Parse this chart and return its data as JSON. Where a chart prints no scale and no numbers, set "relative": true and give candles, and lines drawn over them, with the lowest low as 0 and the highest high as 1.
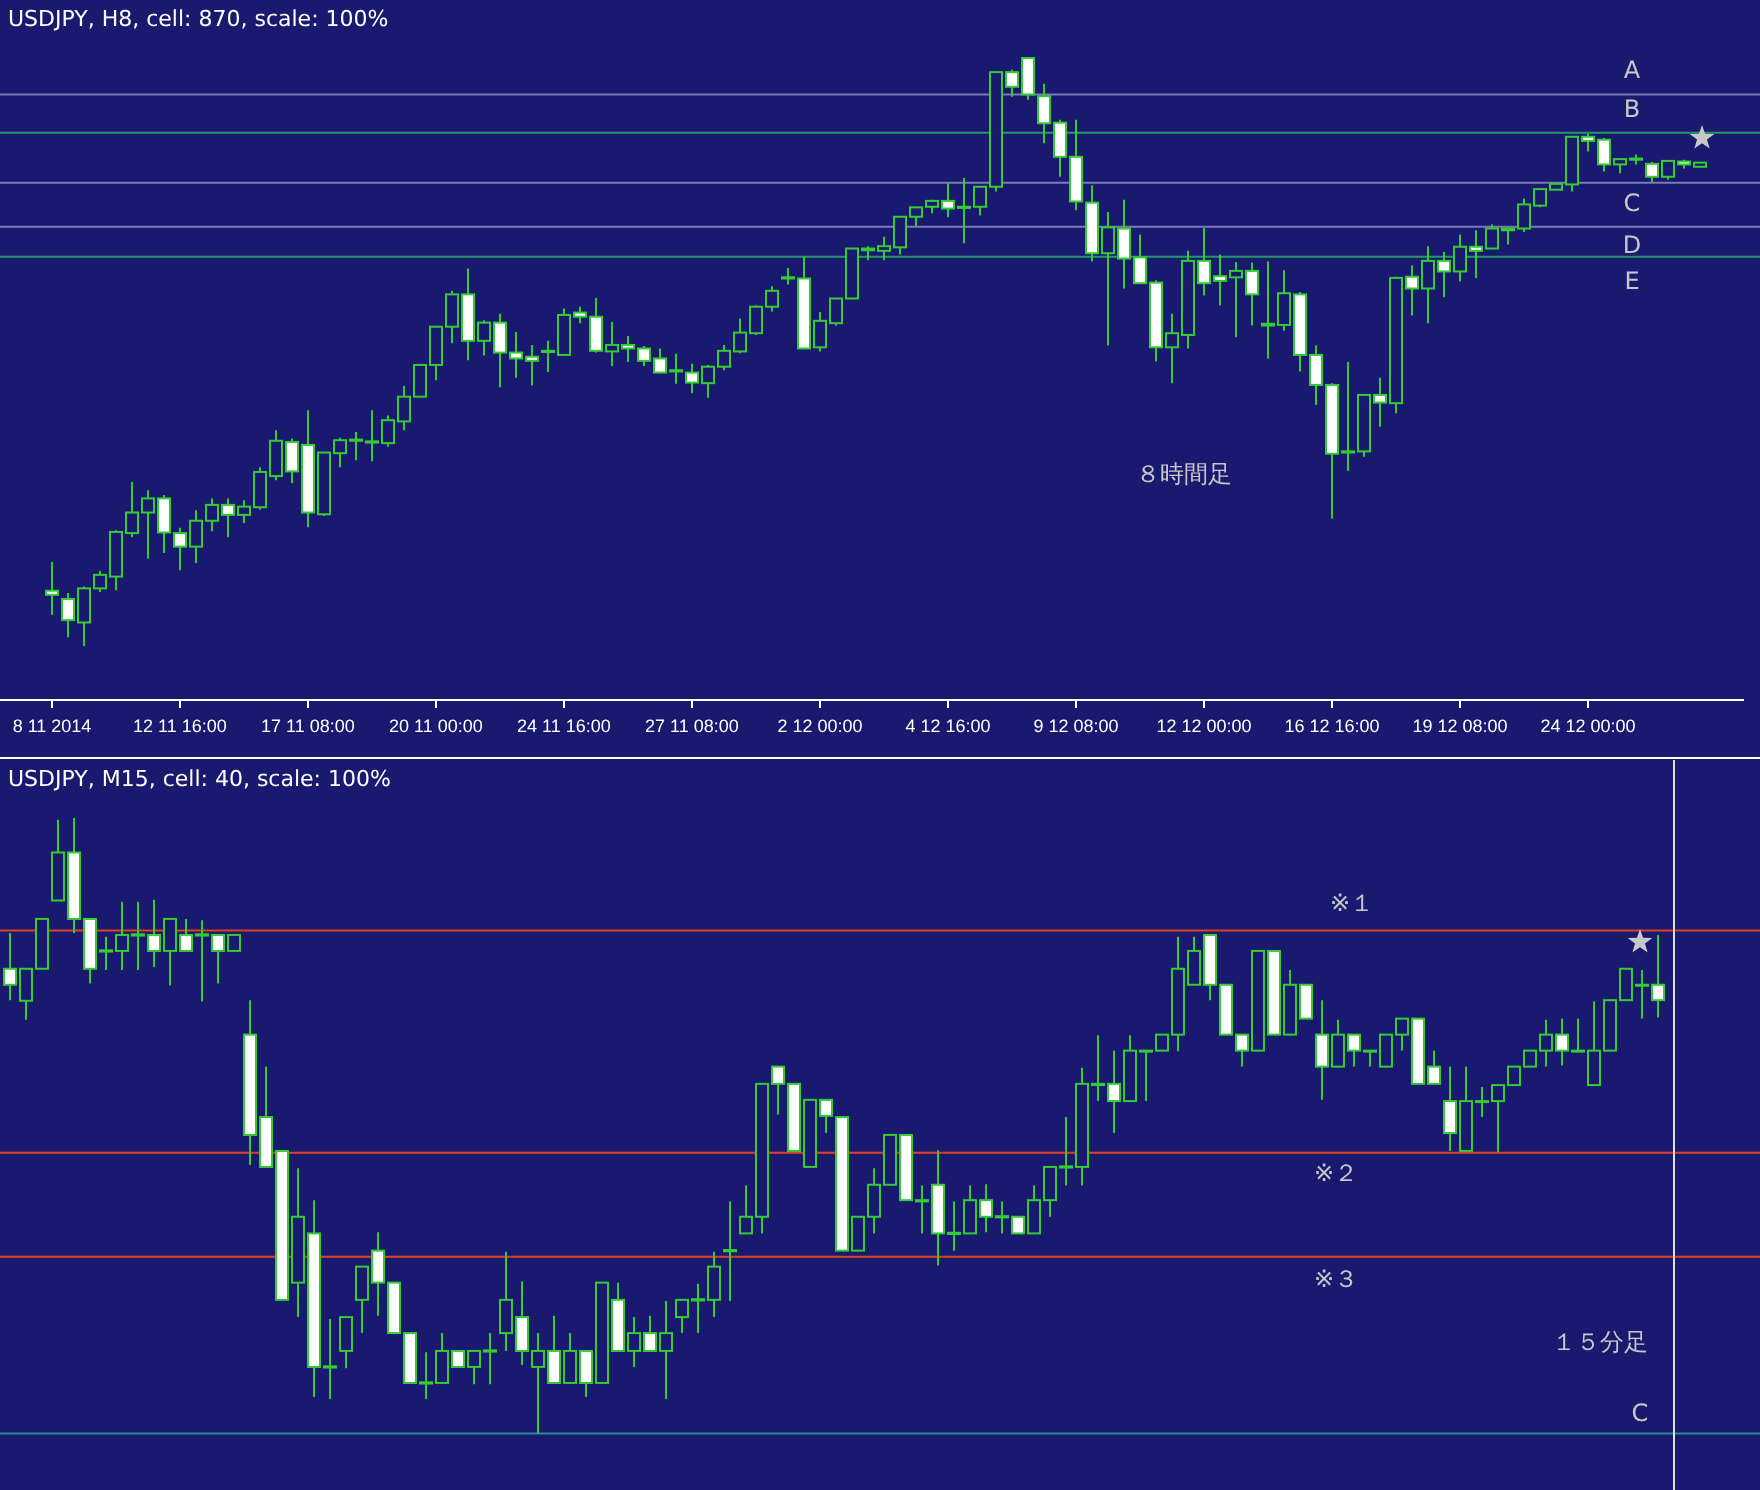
{
  "chart_data": [
    {
      "type": "candlestick",
      "title": "USDJPY, H8, cell: 870, scale: 100%",
      "relative": true,
      "color": "#32cd32",
      "categories": [
        "8 11 2014",
        null,
        null,
        null,
        null,
        null,
        null,
        null,
        "12 11 16:00",
        null,
        null,
        null,
        null,
        null,
        null,
        null,
        "17 11 08:00",
        null,
        null,
        null,
        null,
        null,
        null,
        null,
        "20 11 00:00",
        null,
        null,
        null,
        null,
        null,
        null,
        null,
        "24 11 16:00",
        null,
        null,
        null,
        null,
        null,
        null,
        null,
        "27 11 08:00",
        null,
        null,
        null,
        null,
        null,
        null,
        null,
        "2 12 00:00",
        null,
        null,
        null,
        null,
        null,
        null,
        null,
        "4 12 16:00",
        null,
        null,
        null,
        null,
        null,
        null,
        null,
        "9 12 08:00",
        null,
        null,
        null,
        null,
        null,
        null,
        null,
        "12 12 00:00",
        null,
        null,
        null,
        null,
        null,
        null,
        null,
        "16 12 16:00",
        null,
        null,
        null,
        null,
        null,
        null,
        null,
        "19 12 08:00",
        null,
        null,
        null,
        null,
        null,
        null,
        null,
        "24 12 00:00",
        null,
        null,
        null,
        null,
        null,
        null,
        null
      ],
      "ohlc": [
        [
          0.094,
          0.143,
          0.053,
          0.087
        ],
        [
          0.08,
          0.09,
          0.015,
          0.044
        ],
        [
          0.04,
          0.101,
          0.0,
          0.098
        ],
        [
          0.098,
          0.128,
          0.092,
          0.121
        ],
        [
          0.118,
          0.197,
          0.095,
          0.194
        ],
        [
          0.192,
          0.279,
          0.185,
          0.227
        ],
        [
          0.227,
          0.265,
          0.149,
          0.251
        ],
        [
          0.251,
          0.257,
          0.158,
          0.193
        ],
        [
          0.192,
          0.201,
          0.129,
          0.169
        ],
        [
          0.169,
          0.231,
          0.141,
          0.213
        ],
        [
          0.213,
          0.251,
          0.195,
          0.24
        ],
        [
          0.24,
          0.251,
          0.185,
          0.223
        ],
        [
          0.223,
          0.248,
          0.209,
          0.237
        ],
        [
          0.236,
          0.304,
          0.232,
          0.296
        ],
        [
          0.289,
          0.367,
          0.282,
          0.349
        ],
        [
          0.347,
          0.353,
          0.277,
          0.297
        ],
        [
          0.342,
          0.401,
          0.202,
          0.227
        ],
        [
          0.224,
          0.329,
          0.221,
          0.329
        ],
        [
          0.328,
          0.354,
          0.304,
          0.35
        ],
        [
          0.349,
          0.364,
          0.316,
          0.351
        ],
        [
          0.346,
          0.401,
          0.314,
          0.348
        ],
        [
          0.345,
          0.392,
          0.339,
          0.384
        ],
        [
          0.382,
          0.442,
          0.367,
          0.424
        ],
        [
          0.424,
          0.478,
          0.424,
          0.478
        ],
        [
          0.478,
          0.543,
          0.452,
          0.543
        ],
        [
          0.543,
          0.604,
          0.515,
          0.598
        ],
        [
          0.598,
          0.642,
          0.486,
          0.519
        ],
        [
          0.519,
          0.554,
          0.494,
          0.55
        ],
        [
          0.55,
          0.565,
          0.44,
          0.499
        ],
        [
          0.499,
          0.534,
          0.456,
          0.489
        ],
        [
          0.492,
          0.512,
          0.443,
          0.485
        ],
        [
          0.5,
          0.519,
          0.466,
          0.502
        ],
        [
          0.495,
          0.574,
          0.495,
          0.563
        ],
        [
          0.567,
          0.577,
          0.549,
          0.56
        ],
        [
          0.56,
          0.592,
          0.499,
          0.502
        ],
        [
          0.501,
          0.551,
          0.476,
          0.512
        ],
        [
          0.512,
          0.527,
          0.483,
          0.506
        ],
        [
          0.506,
          0.51,
          0.476,
          0.485
        ],
        [
          0.489,
          0.506,
          0.464,
          0.465
        ],
        [
          0.467,
          0.497,
          0.446,
          0.469
        ],
        [
          0.465,
          0.48,
          0.43,
          0.448
        ],
        [
          0.447,
          0.478,
          0.422,
          0.475
        ],
        [
          0.475,
          0.512,
          0.469,
          0.502
        ],
        [
          0.501,
          0.557,
          0.498,
          0.533
        ],
        [
          0.532,
          0.579,
          0.529,
          0.577
        ],
        [
          0.577,
          0.612,
          0.569,
          0.604
        ],
        [
          0.625,
          0.643,
          0.615,
          0.627
        ],
        [
          0.625,
          0.662,
          0.506,
          0.506
        ],
        [
          0.508,
          0.568,
          0.501,
          0.553
        ],
        [
          0.549,
          0.591,
          0.545,
          0.591
        ],
        [
          0.591,
          0.676,
          0.591,
          0.676
        ],
        [
          0.673,
          0.68,
          0.656,
          0.676
        ],
        [
          0.672,
          0.696,
          0.656,
          0.68
        ],
        [
          0.678,
          0.73,
          0.666,
          0.73
        ],
        [
          0.73,
          0.746,
          0.713,
          0.746
        ],
        [
          0.747,
          0.759,
          0.736,
          0.757
        ],
        [
          0.757,
          0.787,
          0.729,
          0.744
        ],
        [
          0.745,
          0.796,
          0.685,
          0.747
        ],
        [
          0.747,
          0.781,
          0.732,
          0.781
        ],
        [
          0.781,
          0.976,
          0.773,
          0.976
        ],
        [
          0.976,
          0.98,
          0.934,
          0.951
        ],
        [
          1.0,
          1.0,
          0.929,
          0.938
        ],
        [
          0.935,
          0.956,
          0.855,
          0.889
        ],
        [
          0.89,
          0.895,
          0.798,
          0.832
        ],
        [
          0.832,
          0.895,
          0.741,
          0.756
        ],
        [
          0.754,
          0.783,
          0.654,
          0.668
        ],
        [
          0.668,
          0.738,
          0.511,
          0.712
        ],
        [
          0.71,
          0.759,
          0.608,
          0.659
        ],
        [
          0.661,
          0.7,
          0.617,
          0.617
        ],
        [
          0.618,
          0.622,
          0.484,
          0.508
        ],
        [
          0.508,
          0.565,
          0.447,
          0.532
        ],
        [
          0.529,
          0.672,
          0.506,
          0.655
        ],
        [
          0.655,
          0.711,
          0.596,
          0.617
        ],
        [
          0.629,
          0.666,
          0.579,
          0.621
        ],
        [
          0.627,
          0.653,
          0.525,
          0.638
        ],
        [
          0.638,
          0.652,
          0.545,
          0.598
        ],
        [
          0.545,
          0.654,
          0.489,
          0.548
        ],
        [
          0.546,
          0.639,
          0.536,
          0.6
        ],
        [
          0.598,
          0.602,
          0.467,
          0.495
        ],
        [
          0.495,
          0.511,
          0.41,
          0.444
        ],
        [
          0.444,
          0.447,
          0.217,
          0.327
        ],
        [
          0.329,
          0.483,
          0.298,
          0.331
        ],
        [
          0.331,
          0.427,
          0.322,
          0.427
        ],
        [
          0.427,
          0.456,
          0.373,
          0.414
        ],
        [
          0.413,
          0.628,
          0.396,
          0.626
        ],
        [
          0.628,
          0.647,
          0.562,
          0.608
        ],
        [
          0.608,
          0.68,
          0.549,
          0.655
        ],
        [
          0.655,
          0.67,
          0.593,
          0.637
        ],
        [
          0.637,
          0.7,
          0.62,
          0.679
        ],
        [
          0.679,
          0.707,
          0.626,
          0.672
        ],
        [
          0.676,
          0.717,
          0.676,
          0.71
        ],
        [
          0.707,
          0.71,
          0.683,
          0.71
        ],
        [
          0.71,
          0.761,
          0.704,
          0.751
        ],
        [
          0.749,
          0.779,
          0.746,
          0.777
        ],
        [
          0.776,
          0.786,
          0.776,
          0.786
        ],
        [
          0.785,
          0.866,
          0.773,
          0.866
        ],
        [
          0.866,
          0.871,
          0.841,
          0.859
        ],
        [
          0.861,
          0.864,
          0.807,
          0.819
        ],
        [
          0.819,
          0.828,
          0.804,
          0.828
        ],
        [
          0.827,
          0.836,
          0.819,
          0.829
        ],
        [
          0.82,
          0.823,
          0.789,
          0.798
        ],
        [
          0.798,
          0.825,
          0.793,
          0.825
        ],
        [
          0.824,
          0.827,
          0.812,
          0.819
        ],
        [
          0.815,
          0.822,
          0.815,
          0.822
        ]
      ],
      "ref_lines": [
        {
          "axis": "y",
          "value": 0.938,
          "label": "A",
          "color": "#7a7ab8"
        },
        {
          "axis": "y",
          "value": 0.873,
          "label": "B",
          "color": "#229966"
        },
        {
          "axis": "y",
          "value": 0.788,
          "label": "C",
          "color": "#7a7ab8"
        },
        {
          "axis": "y",
          "value": 0.713,
          "label": "D",
          "color": "#7a7ab8"
        },
        {
          "axis": "y",
          "value": 0.662,
          "label": "E",
          "color": "#229966"
        }
      ],
      "annotations": [
        "８時間足"
      ]
    },
    {
      "type": "candlestick",
      "title": "USDJPY, M15, cell: 40, scale: 100%",
      "relative": true,
      "color": "#32cd32",
      "categories": [
        null,
        null,
        null,
        null,
        null,
        null,
        null,
        null,
        null,
        null,
        null,
        null,
        null,
        null,
        null,
        null,
        null,
        null,
        null,
        null,
        null,
        null,
        null,
        null,
        null,
        null,
        null,
        null,
        null,
        null,
        null,
        null,
        null,
        null,
        null,
        null,
        null,
        null,
        null,
        null,
        null,
        null,
        null,
        null,
        null,
        null,
        null,
        null,
        null,
        null,
        null,
        null,
        null,
        null,
        null,
        null,
        null,
        null,
        null,
        null,
        null,
        null,
        null,
        null,
        null,
        null,
        null,
        null,
        null,
        null,
        null,
        null,
        null,
        null,
        null,
        null,
        null,
        null,
        null,
        null,
        null,
        null,
        null,
        null,
        null,
        null,
        null,
        null,
        null,
        null,
        null,
        null,
        null,
        null,
        null,
        null,
        null,
        null,
        null,
        null,
        null,
        null,
        null,
        null
      ],
      "ohlc": [
        [
          0.755,
          0.813,
          0.704,
          0.729
        ],
        [
          0.703,
          0.755,
          0.672,
          0.755
        ],
        [
          0.755,
          0.836,
          0.755,
          0.836
        ],
        [
          0.866,
          0.997,
          0.866,
          0.944
        ],
        [
          0.944,
          1.0,
          0.813,
          0.836
        ],
        [
          0.836,
          0.836,
          0.731,
          0.755
        ],
        [
          0.783,
          0.807,
          0.753,
          0.785
        ],
        [
          0.784,
          0.864,
          0.753,
          0.81
        ],
        [
          0.809,
          0.864,
          0.753,
          0.811
        ],
        [
          0.81,
          0.867,
          0.758,
          0.784
        ],
        [
          0.784,
          0.836,
          0.728,
          0.836
        ],
        [
          0.81,
          0.836,
          0.784,
          0.784
        ],
        [
          0.809,
          0.834,
          0.702,
          0.811
        ],
        [
          0.81,
          0.81,
          0.731,
          0.784
        ],
        [
          0.784,
          0.81,
          0.784,
          0.81
        ],
        [
          0.648,
          0.704,
          0.436,
          0.485
        ],
        [
          0.514,
          0.596,
          0.433,
          0.433
        ],
        [
          0.459,
          0.459,
          0.217,
          0.217
        ],
        [
          0.245,
          0.431,
          0.189,
          0.352
        ],
        [
          0.325,
          0.379,
          0.059,
          0.108
        ],
        [
          0.107,
          0.186,
          0.056,
          0.109
        ],
        [
          0.134,
          0.189,
          0.106,
          0.189
        ],
        [
          0.217,
          0.271,
          0.163,
          0.271
        ],
        [
          0.297,
          0.327,
          0.191,
          0.245
        ],
        [
          0.245,
          0.245,
          0.163,
          0.163
        ],
        [
          0.163,
          0.163,
          0.082,
          0.082
        ],
        [
          0.081,
          0.132,
          0.056,
          0.083
        ],
        [
          0.082,
          0.163,
          0.082,
          0.134
        ],
        [
          0.134,
          0.134,
          0.108,
          0.108
        ],
        [
          0.108,
          0.134,
          0.08,
          0.134
        ],
        [
          0.133,
          0.163,
          0.08,
          0.135
        ],
        [
          0.163,
          0.295,
          0.134,
          0.217
        ],
        [
          0.189,
          0.247,
          0.111,
          0.134
        ],
        [
          0.108,
          0.163,
          0.0,
          0.134
        ],
        [
          0.134,
          0.191,
          0.082,
          0.082
        ],
        [
          0.082,
          0.163,
          0.082,
          0.134
        ],
        [
          0.134,
          0.134,
          0.059,
          0.082
        ],
        [
          0.082,
          0.245,
          0.082,
          0.245
        ],
        [
          0.217,
          0.245,
          0.134,
          0.134
        ],
        [
          0.134,
          0.189,
          0.108,
          0.163
        ],
        [
          0.163,
          0.191,
          0.134,
          0.134
        ],
        [
          0.134,
          0.215,
          0.056,
          0.163
        ],
        [
          0.189,
          0.217,
          0.163,
          0.217
        ],
        [
          0.216,
          0.243,
          0.163,
          0.218
        ],
        [
          0.217,
          0.295,
          0.189,
          0.271
        ],
        [
          0.296,
          0.377,
          0.215,
          0.298
        ],
        [
          0.325,
          0.403,
          0.325,
          0.352
        ],
        [
          0.352,
          0.568,
          0.325,
          0.568
        ],
        [
          0.596,
          0.596,
          0.518,
          0.568
        ],
        [
          0.568,
          0.568,
          0.459,
          0.459
        ],
        [
          0.433,
          0.542,
          0.433,
          0.542
        ],
        [
          0.542,
          0.542,
          0.488,
          0.516
        ],
        [
          0.514,
          0.514,
          0.297,
          0.297
        ],
        [
          0.297,
          0.352,
          0.297,
          0.352
        ],
        [
          0.352,
          0.431,
          0.325,
          0.404
        ],
        [
          0.404,
          0.485,
          0.404,
          0.485
        ],
        [
          0.485,
          0.485,
          0.379,
          0.379
        ],
        [
          0.377,
          0.403,
          0.325,
          0.379
        ],
        [
          0.404,
          0.46,
          0.273,
          0.325
        ],
        [
          0.324,
          0.377,
          0.297,
          0.326
        ],
        [
          0.325,
          0.403,
          0.325,
          0.379
        ],
        [
          0.379,
          0.405,
          0.327,
          0.352
        ],
        [
          0.351,
          0.377,
          0.325,
          0.353
        ],
        [
          0.352,
          0.352,
          0.325,
          0.325
        ],
        [
          0.325,
          0.403,
          0.325,
          0.379
        ],
        [
          0.379,
          0.433,
          0.352,
          0.433
        ],
        [
          0.432,
          0.514,
          0.403,
          0.434
        ],
        [
          0.433,
          0.594,
          0.403,
          0.568
        ],
        [
          0.566,
          0.647,
          0.54,
          0.568
        ],
        [
          0.568,
          0.622,
          0.488,
          0.54
        ],
        [
          0.54,
          0.647,
          0.54,
          0.622
        ],
        [
          0.622,
          0.623,
          0.54,
          0.622
        ],
        [
          0.622,
          0.648,
          0.622,
          0.648
        ],
        [
          0.648,
          0.807,
          0.621,
          0.755
        ],
        [
          0.729,
          0.807,
          0.729,
          0.784
        ],
        [
          0.81,
          0.81,
          0.704,
          0.729
        ],
        [
          0.729,
          0.729,
          0.648,
          0.648
        ],
        [
          0.648,
          0.648,
          0.596,
          0.622
        ],
        [
          0.622,
          0.784,
          0.622,
          0.784
        ],
        [
          0.784,
          0.784,
          0.648,
          0.648
        ],
        [
          0.648,
          0.753,
          0.648,
          0.729
        ],
        [
          0.729,
          0.729,
          0.674,
          0.674
        ],
        [
          0.648,
          0.704,
          0.542,
          0.596
        ],
        [
          0.596,
          0.672,
          0.596,
          0.648
        ],
        [
          0.648,
          0.648,
          0.596,
          0.622
        ],
        [
          0.622,
          0.622,
          0.596,
          0.622
        ],
        [
          0.596,
          0.648,
          0.596,
          0.648
        ],
        [
          0.648,
          0.674,
          0.622,
          0.674
        ],
        [
          0.674,
          0.674,
          0.568,
          0.568
        ],
        [
          0.596,
          0.622,
          0.568,
          0.568
        ],
        [
          0.54,
          0.596,
          0.459,
          0.488
        ],
        [
          0.459,
          0.596,
          0.459,
          0.54
        ],
        [
          0.54,
          0.563,
          0.514,
          0.54
        ],
        [
          0.54,
          0.566,
          0.457,
          0.566
        ],
        [
          0.566,
          0.596,
          0.566,
          0.596
        ],
        [
          0.596,
          0.622,
          0.596,
          0.622
        ],
        [
          0.622,
          0.672,
          0.596,
          0.648
        ],
        [
          0.648,
          0.674,
          0.598,
          0.622
        ],
        [
          0.622,
          0.674,
          0.622,
          0.622
        ],
        [
          0.566,
          0.702,
          0.566,
          0.622
        ],
        [
          0.622,
          0.704,
          0.622,
          0.704
        ],
        [
          0.704,
          0.755,
          0.704,
          0.755
        ],
        [
          0.729,
          0.753,
          0.674,
          0.729
        ],
        [
          0.729,
          0.81,
          0.676,
          0.704
        ]
      ],
      "ref_lines": [
        {
          "axis": "y",
          "value": 0.817,
          "label": "※１",
          "color": "#e04020"
        },
        {
          "axis": "y",
          "value": 0.456,
          "label": "※２",
          "color": "#e04020"
        },
        {
          "axis": "y",
          "value": 0.287,
          "label": "※３",
          "color": "#e04020"
        },
        {
          "axis": "y",
          "value": 0,
          "label": "C",
          "color": "#2a8a9a"
        }
      ],
      "annotations": [
        "１５分足"
      ]
    }
  ]
}
